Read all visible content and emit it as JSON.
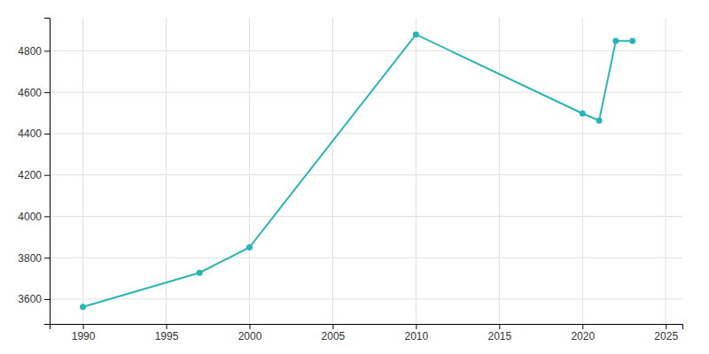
{
  "chart_data": {
    "type": "line",
    "x": [
      1990,
      1997,
      2000,
      2010,
      2020,
      2021,
      2022,
      2023
    ],
    "values": [
      3562,
      3727,
      3850,
      4879,
      4497,
      4463,
      4848,
      4848
    ],
    "color": "#2ab5b5",
    "marker": "circle",
    "xlim": [
      1988,
      2026
    ],
    "ylim": [
      3480,
      4960
    ],
    "xticks": [
      1990,
      1995,
      2000,
      2005,
      2010,
      2015,
      2020,
      2025
    ],
    "yticks": [
      3600,
      3800,
      4000,
      4200,
      4400,
      4600,
      4800
    ],
    "grid": true
  }
}
